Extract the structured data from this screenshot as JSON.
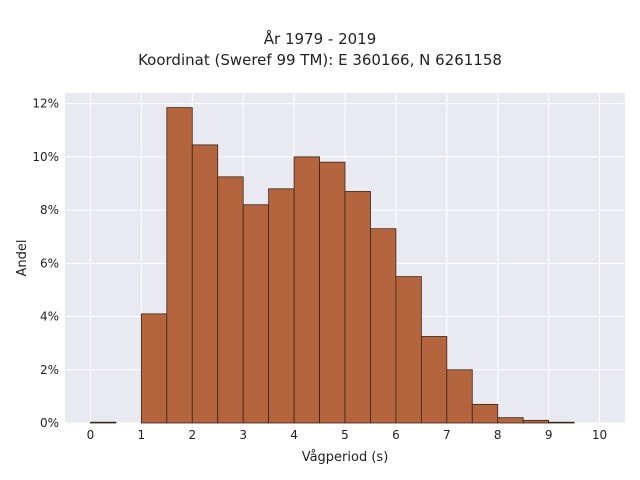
{
  "chart_data": {
    "type": "bar",
    "title": [
      "År 1979 - 2019",
      "Koordinat (Sweref 99 TM): E 360166, N 6261158"
    ],
    "xlabel": "Vågperiod (s)",
    "ylabel": "Andel",
    "xlim": [
      -0.5,
      10.5
    ],
    "ylim": [
      0,
      12.4
    ],
    "x_ticks": [
      0,
      1,
      2,
      3,
      4,
      5,
      6,
      7,
      8,
      9,
      10
    ],
    "x_tick_labels": [
      "0",
      "1",
      "2",
      "3",
      "4",
      "5",
      "6",
      "7",
      "8",
      "9",
      "10"
    ],
    "y_ticks": [
      0,
      2,
      4,
      6,
      8,
      10,
      12
    ],
    "y_tick_labels": [
      "0%",
      "2%",
      "4%",
      "6%",
      "8%",
      "10%",
      "12%"
    ],
    "bin_width": 0.5,
    "bins": [
      {
        "start": 0.0,
        "end": 0.5,
        "value": 0.03
      },
      {
        "start": 0.5,
        "end": 1.0,
        "value": 0.0
      },
      {
        "start": 1.0,
        "end": 1.5,
        "value": 4.1
      },
      {
        "start": 1.5,
        "end": 2.0,
        "value": 11.85
      },
      {
        "start": 2.0,
        "end": 2.5,
        "value": 10.45
      },
      {
        "start": 2.5,
        "end": 3.0,
        "value": 9.25
      },
      {
        "start": 3.0,
        "end": 3.5,
        "value": 8.2
      },
      {
        "start": 3.5,
        "end": 4.0,
        "value": 8.8
      },
      {
        "start": 4.0,
        "end": 4.5,
        "value": 10.0
      },
      {
        "start": 4.5,
        "end": 5.0,
        "value": 9.8
      },
      {
        "start": 5.0,
        "end": 5.5,
        "value": 8.7
      },
      {
        "start": 5.5,
        "end": 6.0,
        "value": 7.3
      },
      {
        "start": 6.0,
        "end": 6.5,
        "value": 5.5
      },
      {
        "start": 6.5,
        "end": 7.0,
        "value": 3.25
      },
      {
        "start": 7.0,
        "end": 7.5,
        "value": 2.0
      },
      {
        "start": 7.5,
        "end": 8.0,
        "value": 0.7
      },
      {
        "start": 8.0,
        "end": 8.5,
        "value": 0.2
      },
      {
        "start": 8.5,
        "end": 9.0,
        "value": 0.1
      },
      {
        "start": 9.0,
        "end": 9.5,
        "value": 0.03
      },
      {
        "start": 9.5,
        "end": 10.0,
        "value": 0.0
      }
    ],
    "grid": true,
    "legend": "none",
    "colors": {
      "bar_fill": "#b5653e",
      "bar_edge": "#3a2418",
      "plot_background": "#e9e9f1",
      "grid": "#ffffff"
    }
  }
}
